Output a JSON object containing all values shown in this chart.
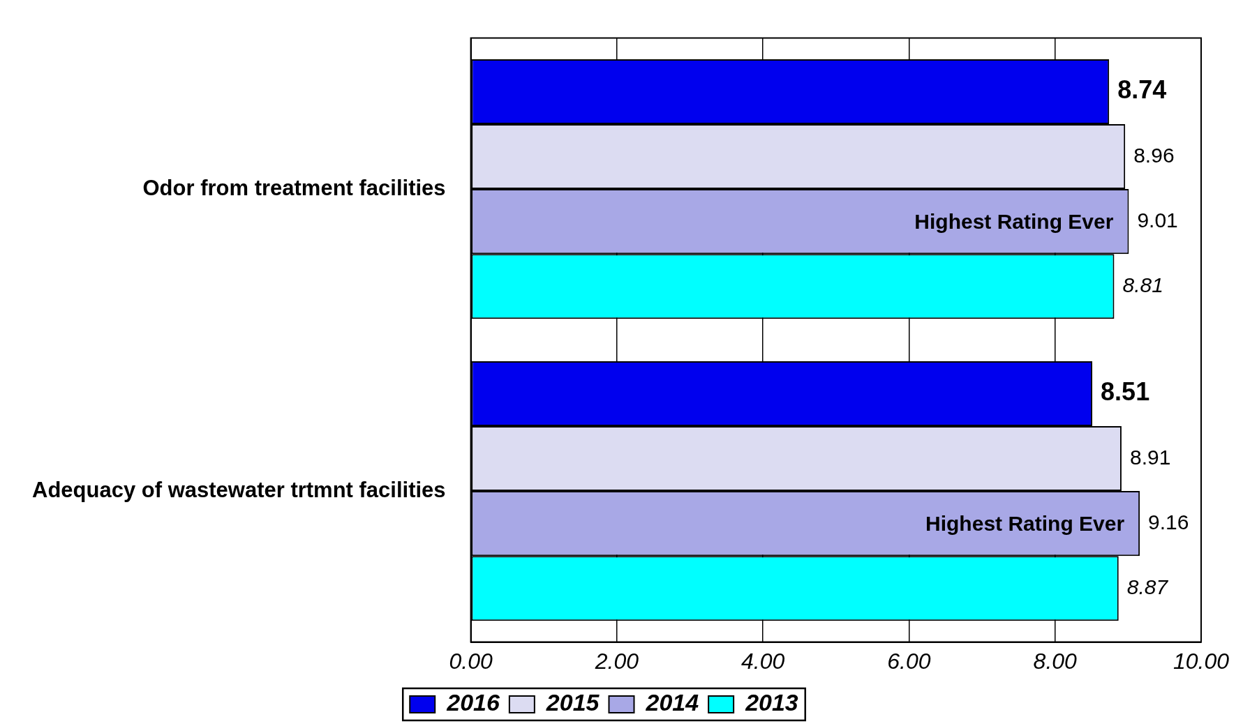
{
  "chart_data": {
    "type": "bar",
    "orientation": "horizontal",
    "categories": [
      "Odor from treatment facilities",
      "Adequacy of wastewater trtmnt facilities"
    ],
    "series": [
      {
        "name": "2016",
        "color": "#0000ee",
        "values": [
          8.74,
          8.51
        ]
      },
      {
        "name": "2015",
        "color": "#dcdcf2",
        "values": [
          8.96,
          8.91
        ]
      },
      {
        "name": "2014",
        "color": "#a8a8e6",
        "values": [
          9.01,
          9.16
        ]
      },
      {
        "name": "2013",
        "color": "#00ffff",
        "values": [
          8.81,
          8.87
        ]
      }
    ],
    "xlim": [
      0,
      10
    ],
    "xticks": [
      {
        "value": 0,
        "label": "0.00"
      },
      {
        "value": 2,
        "label": "2.00"
      },
      {
        "value": 4,
        "label": "4.00"
      },
      {
        "value": 6,
        "label": "6.00"
      },
      {
        "value": 8,
        "label": "8.00"
      },
      {
        "value": 10,
        "label": "10.00"
      }
    ],
    "grid": "x",
    "legend": "bottom",
    "data_labels": true,
    "annotations": [
      {
        "text": "Highest Rating Ever",
        "x": 9.01,
        "y": "Odor from treatment facilities"
      },
      {
        "text": "Highest Rating Ever",
        "x": 9.16,
        "y": "Adequacy of wastewater trtmnt facilities"
      }
    ]
  }
}
